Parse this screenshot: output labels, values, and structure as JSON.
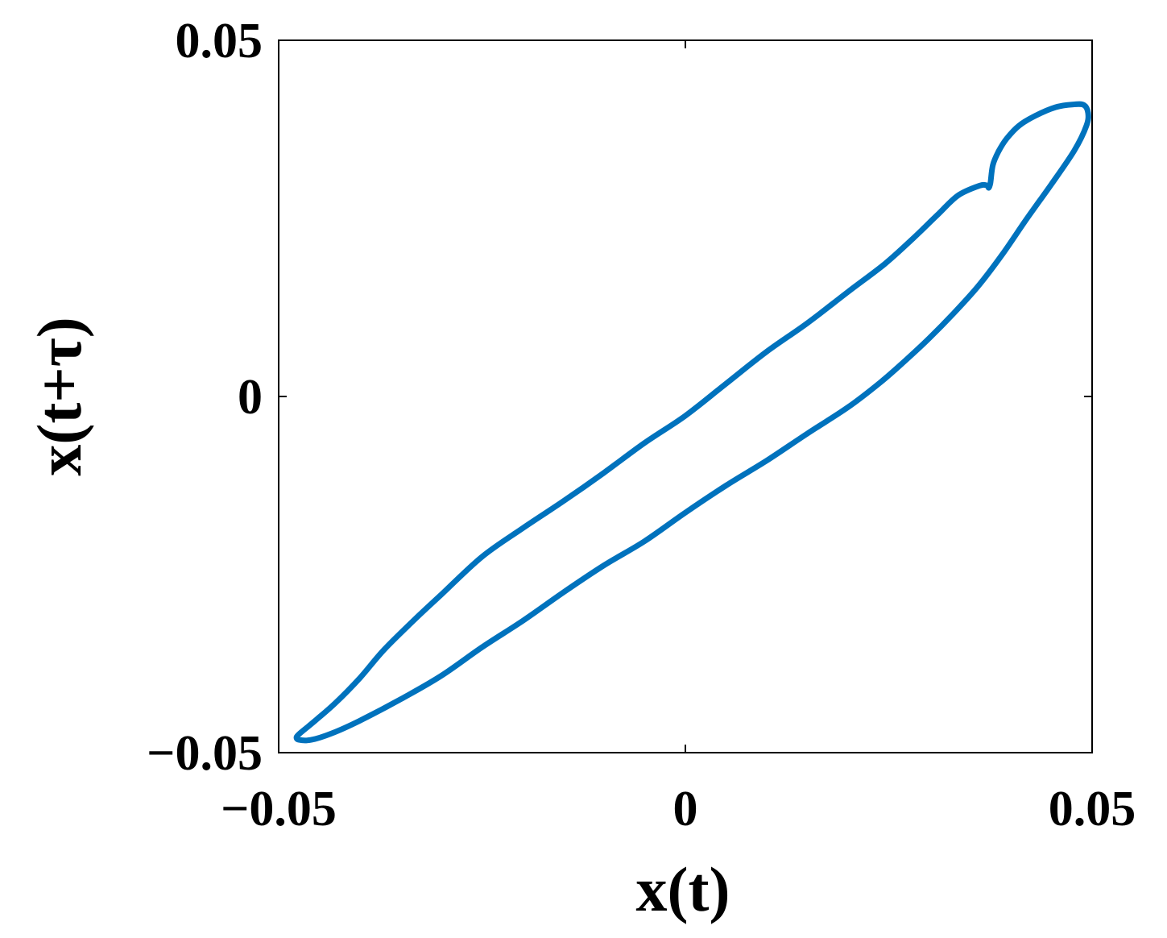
{
  "chart_data": {
    "type": "line",
    "title": "",
    "xlabel": "x(t)",
    "ylabel": "x(t+τ)",
    "xlim": [
      -0.05,
      0.05
    ],
    "ylim": [
      -0.05,
      0.05
    ],
    "xticks": [
      -0.05,
      0,
      0.05
    ],
    "yticks": [
      -0.05,
      0,
      0.05
    ],
    "xtick_labels": [
      "−0.05",
      "0",
      "0.05"
    ],
    "ytick_labels": [
      "−0.05",
      "0",
      "0.05"
    ],
    "grid": false,
    "legend": "none",
    "line_color": "#0072BD",
    "series": [
      {
        "x": [
          -0.0473,
          -0.0455,
          -0.043,
          -0.04,
          -0.037,
          -0.033,
          -0.03,
          -0.025,
          -0.02,
          -0.015,
          -0.01,
          -0.005,
          0,
          0.005,
          0.01,
          0.015,
          0.02,
          0.0245,
          0.028,
          0.031,
          0.0335,
          0.0362,
          0.0371,
          0.0373,
          0.0375,
          0.0378,
          0.0385,
          0.0395,
          0.041,
          0.043,
          0.0455,
          0.0477,
          0.049,
          0.0495,
          0.0493,
          0.0478,
          0.045,
          0.042,
          0.039,
          0.036,
          0.033,
          0.03,
          0.027,
          0.024,
          0.02,
          0.015,
          0.01,
          0.005,
          0,
          -0.005,
          -0.01,
          -0.015,
          -0.02,
          -0.025,
          -0.03,
          -0.035,
          -0.04,
          -0.0435,
          -0.046,
          -0.0475,
          -0.0478,
          -0.0473
        ],
        "y": [
          -0.0472,
          -0.0455,
          -0.043,
          -0.0395,
          -0.0355,
          -0.031,
          -0.0278,
          -0.0225,
          -0.0185,
          -0.0147,
          -0.0107,
          -0.0065,
          -0.0027,
          0.0018,
          0.0063,
          0.0103,
          0.0147,
          0.0186,
          0.0222,
          0.0255,
          0.0282,
          0.0296,
          0.0296,
          0.0293,
          0.03,
          0.0325,
          0.0344,
          0.0362,
          0.038,
          0.0394,
          0.0406,
          0.041,
          0.0409,
          0.0398,
          0.038,
          0.0345,
          0.0298,
          0.025,
          0.02,
          0.0155,
          0.0117,
          0.0082,
          0.005,
          0.002,
          -0.0015,
          -0.0052,
          -0.009,
          -0.0125,
          -0.0163,
          -0.0203,
          -0.0237,
          -0.0275,
          -0.0315,
          -0.0352,
          -0.0392,
          -0.0425,
          -0.0455,
          -0.0473,
          -0.0482,
          -0.0482,
          -0.0478,
          -0.0472
        ]
      }
    ]
  }
}
